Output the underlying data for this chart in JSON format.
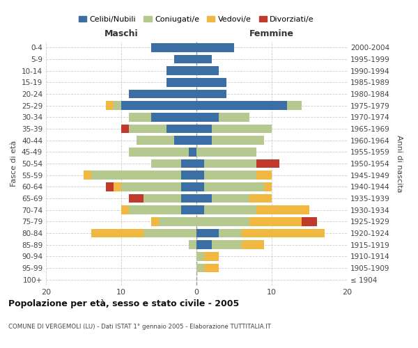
{
  "age_groups": [
    "100+",
    "95-99",
    "90-94",
    "85-89",
    "80-84",
    "75-79",
    "70-74",
    "65-69",
    "60-64",
    "55-59",
    "50-54",
    "45-49",
    "40-44",
    "35-39",
    "30-34",
    "25-29",
    "20-24",
    "15-19",
    "10-14",
    "5-9",
    "0-4"
  ],
  "birth_years": [
    "≤ 1904",
    "1905-1909",
    "1910-1914",
    "1915-1919",
    "1920-1924",
    "1925-1929",
    "1930-1934",
    "1935-1939",
    "1940-1944",
    "1945-1949",
    "1950-1954",
    "1955-1959",
    "1960-1964",
    "1965-1969",
    "1970-1974",
    "1975-1979",
    "1980-1984",
    "1985-1989",
    "1990-1994",
    "1995-1999",
    "2000-2004"
  ],
  "colors": {
    "celibi": "#3a6ea5",
    "coniugati": "#b5c98e",
    "vedovi": "#f0b840",
    "divorziati": "#c0392b"
  },
  "maschi": {
    "celibi": [
      0,
      0,
      0,
      0,
      0,
      0,
      2,
      2,
      2,
      2,
      2,
      1,
      3,
      4,
      6,
      10,
      9,
      4,
      4,
      3,
      6
    ],
    "coniugati": [
      0,
      0,
      0,
      1,
      7,
      5,
      7,
      5,
      8,
      12,
      4,
      8,
      5,
      5,
      3,
      1,
      0,
      0,
      0,
      0,
      0
    ],
    "vedovi": [
      0,
      0,
      0,
      0,
      7,
      1,
      1,
      0,
      1,
      1,
      0,
      0,
      0,
      0,
      0,
      1,
      0,
      0,
      0,
      0,
      0
    ],
    "divorziati": [
      0,
      0,
      0,
      0,
      0,
      0,
      0,
      2,
      1,
      0,
      0,
      0,
      0,
      1,
      0,
      0,
      0,
      0,
      0,
      0,
      0
    ]
  },
  "femmine": {
    "celibi": [
      0,
      0,
      0,
      2,
      3,
      0,
      1,
      2,
      1,
      1,
      1,
      0,
      2,
      2,
      3,
      12,
      4,
      4,
      3,
      2,
      5
    ],
    "coniugati": [
      0,
      1,
      1,
      4,
      3,
      7,
      7,
      5,
      8,
      7,
      7,
      8,
      7,
      8,
      4,
      2,
      0,
      0,
      0,
      0,
      0
    ],
    "vedovi": [
      0,
      2,
      2,
      3,
      11,
      7,
      7,
      3,
      1,
      2,
      0,
      0,
      0,
      0,
      0,
      0,
      0,
      0,
      0,
      0,
      0
    ],
    "divorziati": [
      0,
      0,
      0,
      0,
      0,
      2,
      0,
      0,
      0,
      0,
      3,
      0,
      0,
      0,
      0,
      0,
      0,
      0,
      0,
      0,
      0
    ]
  },
  "title": "Popolazione per età, sesso e stato civile - 2005",
  "subtitle": "COMUNE DI VERGEMOLI (LU) - Dati ISTAT 1° gennaio 2005 - Elaborazione TUTTITALIA.IT",
  "xlabel_left": "Maschi",
  "xlabel_right": "Femmine",
  "ylabel_left": "Fasce di età",
  "ylabel_right": "Anni di nascita",
  "xlim": 20,
  "legend_labels": [
    "Celibi/Nubili",
    "Coniugati/e",
    "Vedovi/e",
    "Divorziati/e"
  ],
  "background_color": "#ffffff",
  "grid_color": "#cccccc"
}
